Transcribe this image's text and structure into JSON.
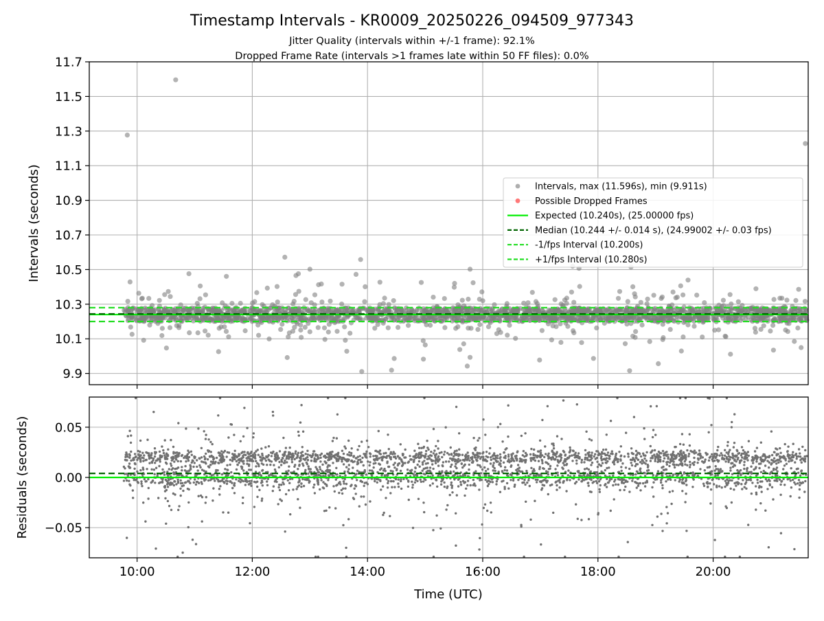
{
  "title": "Timestamp Intervals - KR0009_20250226_094509_977343",
  "subtitle_1": "Jitter Quality (intervals within +/-1 frame): 92.1%",
  "subtitle_2": "Dropped Frame Rate (intervals >1 frames late within 50 FF files): 0.0%",
  "colors": {
    "points": "#808080",
    "dropped": "#ff0000",
    "expected": "#00ee00",
    "median": "#006400",
    "fps_band": "#22dd22",
    "grid": "#b0b0b0",
    "axis": "#000000"
  },
  "chart_data": [
    {
      "id": "intervals",
      "type": "scatter",
      "ylabel": "Intervals (seconds)",
      "xlim": [
        9.17,
        21.65
      ],
      "ylim": [
        9.835,
        11.7
      ],
      "yticks": [
        9.9,
        10.1,
        10.3,
        10.5,
        10.7,
        10.9,
        11.1,
        11.3,
        11.5,
        11.7
      ],
      "ytick_labels": [
        "9.9",
        "10.1",
        "10.3",
        "10.5",
        "10.7",
        "10.9",
        "11.1",
        "11.3",
        "11.5",
        "11.7"
      ],
      "xticks": [
        10,
        12,
        14,
        16,
        18,
        20
      ],
      "grid": true,
      "expected_interval": 10.24,
      "median_interval": 10.244,
      "minus_fps_interval": 10.2,
      "plus_fps_interval": 10.28,
      "max_interval": 11.596,
      "min_interval": 9.911,
      "data_start_hour": 9.77,
      "data_end_hour": 21.63,
      "outliers": [
        {
          "x": 9.83,
          "y": 11.277
        },
        {
          "x": 10.67,
          "y": 11.596
        },
        {
          "x": 21.6,
          "y": 11.228
        },
        {
          "x": 13.9,
          "y": 9.911
        },
        {
          "x": 13.88,
          "y": 10.558
        },
        {
          "x": 15.78,
          "y": 10.502
        },
        {
          "x": 13.0,
          "y": 10.502
        },
        {
          "x": 15.78,
          "y": 9.993
        },
        {
          "x": 12.8,
          "y": 10.476
        },
        {
          "x": 10.9,
          "y": 10.476
        }
      ],
      "legend": {
        "position": "center-right",
        "entries": [
          {
            "label": "Intervals, max (11.596s), min (9.911s)",
            "kind": "marker",
            "color": "#a0a0a0"
          },
          {
            "label": "Possible Dropped Frames",
            "kind": "marker",
            "color": "#ff6060"
          },
          {
            "label": "Expected (10.240s), (25.00000 fps)",
            "kind": "line",
            "color": "#00ee00",
            "dash": false
          },
          {
            "label": "Median (10.244 +/- 0.014 s), (24.99002 +/- 0.03 fps)",
            "kind": "line",
            "color": "#006400",
            "dash": true
          },
          {
            "label": "-1/fps Interval (10.200s)",
            "kind": "line",
            "color": "#22dd22",
            "dash": true
          },
          {
            "label": "+1/fps Interval (10.280s)",
            "kind": "line",
            "color": "#22dd22",
            "dash": true
          }
        ]
      }
    },
    {
      "id": "residuals",
      "type": "scatter",
      "ylabel": "Residuals (seconds)",
      "xlabel": "Time (UTC)",
      "xlim": [
        9.17,
        21.65
      ],
      "ylim": [
        -0.08,
        0.08
      ],
      "yticks": [
        -0.05,
        0.0,
        0.05
      ],
      "ytick_labels": [
        "−0.05",
        "0.00",
        "0.05"
      ],
      "xticks": [
        10,
        12,
        14,
        16,
        18,
        20
      ],
      "xtick_labels": [
        "10:00",
        "12:00",
        "14:00",
        "16:00",
        "18:00",
        "20:00"
      ],
      "grid": true,
      "zero_line": 0.0,
      "median_offset": 0.004,
      "data_start_hour": 9.77,
      "data_end_hour": 21.63
    }
  ]
}
